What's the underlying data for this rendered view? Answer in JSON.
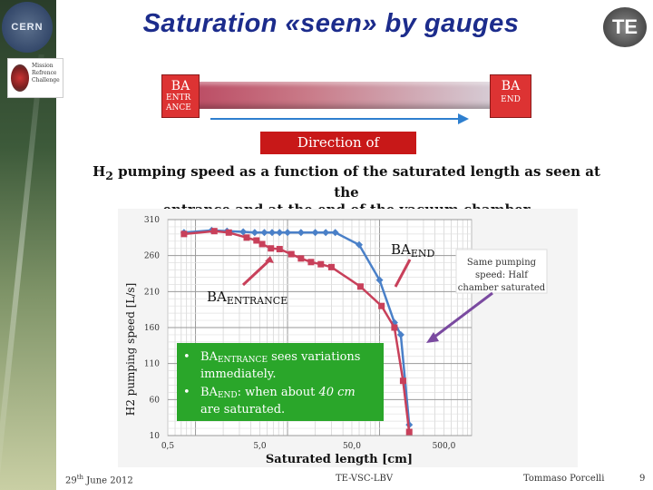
{
  "header": {
    "title": "Saturation «seen» by gauges",
    "cern_logo_text": "CERN",
    "te_logo_text": "TE",
    "mrc_logo_lines": [
      "Mission",
      "Refrence",
      "Challenge"
    ]
  },
  "diagram": {
    "ba_entrance": {
      "label": "BA",
      "sub": "ENTR ANCE"
    },
    "ba_end": {
      "label": "BA",
      "sub": "END"
    },
    "direction_label": "Direction of saturation"
  },
  "subtitle": {
    "line1_pre": "H",
    "line1_sub": "2",
    "line1_post": " pumping speed as a function of the saturated length as seen at the",
    "line2": "entrance and at the end of the vacuum chamber"
  },
  "chart_data": {
    "type": "line",
    "xlabel": "Saturated length [cm]",
    "ylabel": "H2 pumping speed [L/s]",
    "x_scale": "log",
    "xlim": [
      0.5,
      1000
    ],
    "ylim": [
      10,
      310
    ],
    "x_ticks": [
      0.5,
      5,
      50,
      500
    ],
    "x_tick_labels": [
      "0,5",
      "5,0",
      "50,0",
      "500,0"
    ],
    "y_ticks": [
      10,
      60,
      110,
      160,
      210,
      260,
      310
    ],
    "y_tick_labels": [
      "10",
      "60",
      "110",
      "160",
      "210",
      "260",
      "310"
    ],
    "grid": true,
    "series": [
      {
        "name": "BAEND",
        "color": "#4a80c8",
        "marker": "diamond",
        "x": [
          0.75,
          1.5,
          2.2,
          3.3,
          4.4,
          5.6,
          6.8,
          8.2,
          10,
          14,
          20,
          26,
          33,
          60,
          100,
          145,
          170,
          210
        ],
        "y": [
          292,
          295,
          294,
          293,
          292,
          292,
          292,
          292,
          292,
          292,
          292,
          292,
          292,
          275,
          226,
          167,
          150,
          25
        ]
      },
      {
        "name": "BAENTRANCE",
        "color": "#c8405a",
        "marker": "square",
        "x": [
          0.75,
          1.6,
          2.3,
          3.6,
          4.6,
          5.3,
          6.6,
          8.2,
          11,
          14,
          18,
          23,
          30,
          62,
          105,
          145,
          180,
          210
        ],
        "y": [
          290,
          294,
          292,
          285,
          281,
          276,
          270,
          269,
          262,
          256,
          251,
          248,
          244,
          217,
          190,
          160,
          86,
          15
        ]
      }
    ],
    "annotations": {
      "ba_end": {
        "main": "BA",
        "sub": "END"
      },
      "ba_entrance": {
        "main": "BA",
        "sub": "ENTRANCE"
      },
      "same_pumping": "Same pumping speed: Half chamber saturated",
      "bullet1_pre": "BA",
      "bullet1_sub": "ENTRANCE",
      "bullet1_post": " sees variations immediately.",
      "bullet2_pre": "BA",
      "bullet2_sub": "END",
      "bullet2_post": ": when about ",
      "bullet2_em": "40 cm",
      "bullet2_tail": " are saturated."
    }
  },
  "footer": {
    "date_day": "29",
    "date_suffix": "th",
    "date_rest": " June 2012",
    "group": "TE-VSC-LBV",
    "author": "Tommaso Porcelli",
    "page": "9"
  }
}
